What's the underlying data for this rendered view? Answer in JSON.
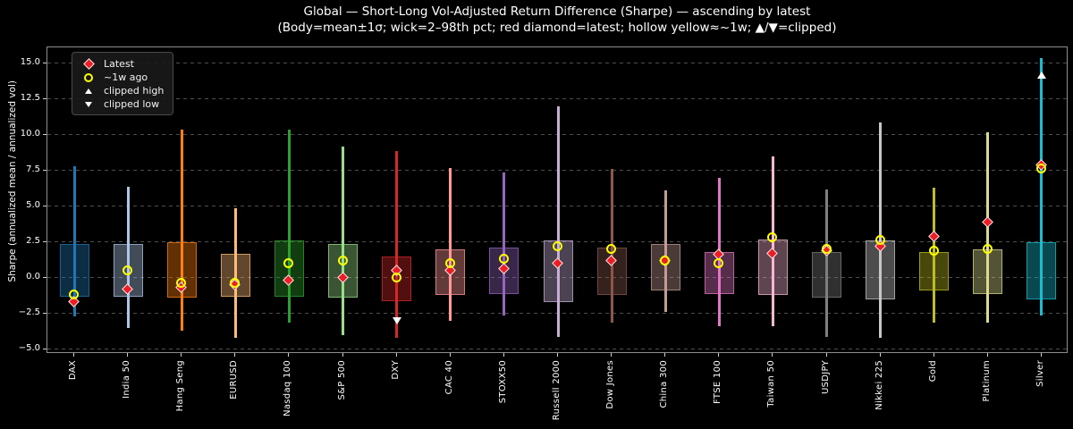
{
  "chart_data": {
    "type": "candlestick_range",
    "title": "Global — Short-Long Vol-Adjusted Return Difference (Sharpe) — ascending by latest",
    "subtitle": "(Body=mean±1σ; wick=2–98th pct; red diamond=latest; hollow yellow≈~1w; ▲/▼=clipped)",
    "ylabel": "Sharpe (annualized mean / annualized vol)",
    "ylim": [
      -5.3,
      16.1
    ],
    "yticks": [
      15.0,
      12.5,
      10.0,
      7.5,
      5.0,
      2.5,
      0.0,
      -2.5,
      -5.0
    ],
    "ytick_labels": [
      "15.0",
      "12.5",
      "10.0",
      "7.5",
      "5.0",
      "2.5",
      "0.0",
      "−2.5",
      "−5.0"
    ],
    "grid": "dashed-horizontal",
    "legend_position": "upper-left",
    "categories": [
      "DAX",
      "India 50",
      "Hang Seng",
      "EURUSD",
      "Nasdaq 100",
      "S&P 500",
      "DXY",
      "CAC 40",
      "STOXX50",
      "Russell 2000",
      "Dow Jones",
      "China 300",
      "FTSE 100",
      "Taiwan 50",
      "USDJPY",
      "Nikkei 225",
      "Gold",
      "Platinum",
      "Silver"
    ],
    "series": [
      {
        "label": "DAX",
        "color": "#1f77b4",
        "wick_low": -2.7,
        "wick_high": 7.8,
        "body_low": -1.3,
        "body_high": 2.4,
        "latest": -1.7,
        "week_ago": -1.2
      },
      {
        "label": "India 50",
        "color": "#aec7e8",
        "wick_low": -3.5,
        "wick_high": 6.4,
        "body_low": -1.3,
        "body_high": 2.4,
        "latest": -0.8,
        "week_ago": 0.5
      },
      {
        "label": "Hang Seng",
        "color": "#ff7f0e",
        "wick_low": -3.7,
        "wick_high": 10.4,
        "body_low": -1.4,
        "body_high": 2.5,
        "latest": -0.7,
        "week_ago": -0.4
      },
      {
        "label": "EURUSD",
        "color": "#ffbb78",
        "wick_low": -4.2,
        "wick_high": 4.9,
        "body_low": -1.3,
        "body_high": 1.7,
        "latest": -0.5,
        "week_ago": -0.4
      },
      {
        "label": "Nasdaq 100",
        "color": "#2ca02c",
        "wick_low": -3.1,
        "wick_high": 10.4,
        "body_low": -1.3,
        "body_high": 2.6,
        "latest": -0.2,
        "week_ago": 1.0
      },
      {
        "label": "S&P 500",
        "color": "#98df8a",
        "wick_low": -4.0,
        "wick_high": 9.2,
        "body_low": -1.4,
        "body_high": 2.4,
        "latest": 0.0,
        "week_ago": 1.2
      },
      {
        "label": "DXY",
        "color": "#d62728",
        "wick_low": -4.2,
        "wick_high": 8.9,
        "body_low": -1.6,
        "body_high": 1.5,
        "latest": 0.5,
        "week_ago": 0.0,
        "clipped_low_marker": -3.0
      },
      {
        "label": "CAC 40",
        "color": "#ff9896",
        "wick_low": -3.0,
        "wick_high": 7.7,
        "body_low": -1.2,
        "body_high": 2.0,
        "latest": 0.5,
        "week_ago": 1.0
      },
      {
        "label": "STOXX50",
        "color": "#9467bd",
        "wick_low": -2.6,
        "wick_high": 7.4,
        "body_low": -1.1,
        "body_high": 2.1,
        "latest": 0.6,
        "week_ago": 1.3
      },
      {
        "label": "Russell 2000",
        "color": "#c5b0d5",
        "wick_low": -4.1,
        "wick_high": 12.0,
        "body_low": -1.7,
        "body_high": 2.6,
        "latest": 1.0,
        "week_ago": 2.2
      },
      {
        "label": "Dow Jones",
        "color": "#8c564b",
        "wick_low": -3.1,
        "wick_high": 7.6,
        "body_low": -1.2,
        "body_high": 2.1,
        "latest": 1.2,
        "week_ago": 2.0
      },
      {
        "label": "China 300",
        "color": "#c49c94",
        "wick_low": -2.4,
        "wick_high": 6.1,
        "body_low": -0.9,
        "body_high": 2.4,
        "latest": 1.2,
        "week_ago": 1.2
      },
      {
        "label": "FTSE 100",
        "color": "#e377c2",
        "wick_low": -3.4,
        "wick_high": 7.0,
        "body_low": -1.1,
        "body_high": 1.8,
        "latest": 1.6,
        "week_ago": 1.0
      },
      {
        "label": "Taiwan 50",
        "color": "#f7b6d2",
        "wick_low": -3.4,
        "wick_high": 8.5,
        "body_low": -1.2,
        "body_high": 2.7,
        "latest": 1.7,
        "week_ago": 2.8
      },
      {
        "label": "USDJPY",
        "color": "#7f7f7f",
        "wick_low": -4.1,
        "wick_high": 6.2,
        "body_low": -1.4,
        "body_high": 1.8,
        "latest": 1.9,
        "week_ago": 2.0
      },
      {
        "label": "Nikkei 225",
        "color": "#c7c7c7",
        "wick_low": -4.2,
        "wick_high": 10.9,
        "body_low": -1.5,
        "body_high": 2.6,
        "latest": 2.2,
        "week_ago": 2.6
      },
      {
        "label": "Gold",
        "color": "#bcbd22",
        "wick_low": -3.1,
        "wick_high": 6.3,
        "body_low": -0.9,
        "body_high": 1.8,
        "latest": 2.9,
        "week_ago": 1.9
      },
      {
        "label": "Platinum",
        "color": "#dbdb8d",
        "wick_low": -3.1,
        "wick_high": 10.2,
        "body_low": -1.1,
        "body_high": 2.0,
        "latest": 3.9,
        "week_ago": 2.0
      },
      {
        "label": "Silver",
        "color": "#17becf",
        "wick_low": -2.6,
        "wick_high": 15.4,
        "body_low": -1.5,
        "body_high": 2.5,
        "latest": 7.9,
        "week_ago": 7.6,
        "clipped_high_marker": 14.2
      }
    ]
  },
  "legend": {
    "items": [
      {
        "icon": "latest-diamond-icon",
        "label": "Latest"
      },
      {
        "icon": "week-ago-circle-icon",
        "label": "~1w ago"
      },
      {
        "icon": "clipped-high-triangle-icon",
        "label": "clipped high"
      },
      {
        "icon": "clipped-low-triangle-icon",
        "label": "clipped low"
      }
    ]
  },
  "colors": {
    "background": "#000000",
    "text": "#ffffff",
    "grid": "#4d4d4d",
    "spine": "#8d8d8d",
    "latest_marker": "#ee1c25",
    "latest_marker_edge": "#ededed",
    "week_marker": "#ffff00",
    "clip_marker": "#ffffff"
  }
}
